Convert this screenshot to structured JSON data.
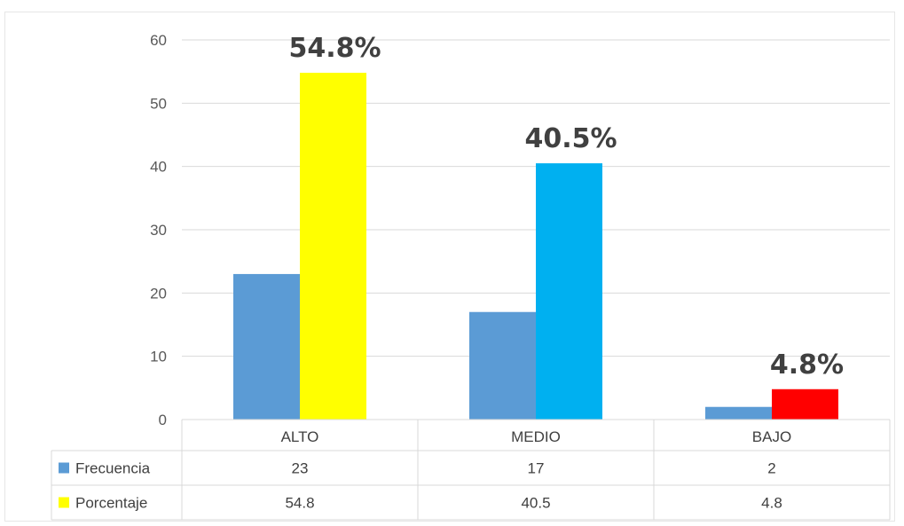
{
  "chart_data": {
    "type": "bar",
    "categories": [
      "ALTO",
      "MEDIO",
      "BAJO"
    ],
    "series": [
      {
        "name": "Frecuencia",
        "values": [
          23,
          17,
          2
        ],
        "color": "#5B9BD5",
        "legend_color": "#5B9BD5",
        "table_values": [
          "23",
          "17",
          "2"
        ]
      },
      {
        "name": "Porcentaje",
        "values": [
          54.8,
          40.5,
          4.8
        ],
        "colors": [
          "#FFFF00",
          "#00B0F0",
          "#FF0000"
        ],
        "legend_color": "#FFFF00",
        "table_values": [
          "54.8",
          "40.5",
          "4.8"
        ]
      }
    ],
    "data_labels": [
      "54.8%",
      "40.5%",
      "4.8%"
    ],
    "y_ticks": [
      "0",
      "10",
      "20",
      "30",
      "40",
      "50",
      "60"
    ],
    "ylim": [
      0,
      60
    ],
    "grid": true,
    "data_table": true,
    "legend_placement": "data-table"
  }
}
